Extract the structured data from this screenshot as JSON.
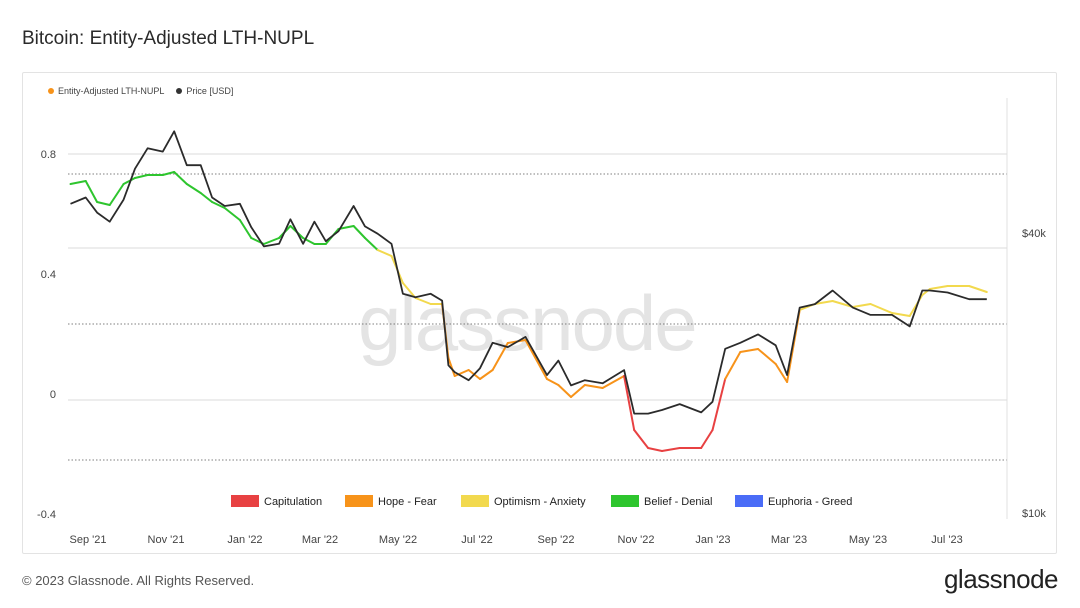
{
  "header": {
    "title": "Bitcoin: Entity-Adjusted LTH-NUPL"
  },
  "footer": {
    "copyright": "© 2023 Glassnode. All Rights Reserved.",
    "brand": "glassnode"
  },
  "watermark": "glassnode",
  "legend_top": [
    {
      "label": "Entity-Adjusted LTH-NUPL",
      "color": "#f7931a"
    },
    {
      "label": "Price [USD]",
      "color": "#333333"
    }
  ],
  "legend_bottom": [
    {
      "label": "Capitulation",
      "color": "#e84142"
    },
    {
      "label": "Hope - Fear",
      "color": "#f7931a"
    },
    {
      "label": "Optimism - Anxiety",
      "color": "#f2d94e"
    },
    {
      "label": "Belief - Denial",
      "color": "#2ec52e"
    },
    {
      "label": "Euphoria - Greed",
      "color": "#4a6cf7"
    }
  ],
  "chart_data": {
    "type": "line",
    "title": "Bitcoin: Entity-Adjusted LTH-NUPL",
    "x_ticks": [
      "Sep '21",
      "Nov '21",
      "Jan '22",
      "Mar '22",
      "May '22",
      "Jul '22",
      "Sep '22",
      "Nov '22",
      "Jan '23",
      "Mar '23",
      "May '23",
      "Jul '23"
    ],
    "y_left_ticks": [
      "0.8",
      "0.4",
      "0",
      "-0.4"
    ],
    "y_left_range": [
      -0.4,
      0.8
    ],
    "y_right_ticks": [
      "$40k",
      "$10k"
    ],
    "y_right_scale": "log",
    "y_right_range": [
      10000,
      70000
    ],
    "grid": true,
    "series": [
      {
        "name": "Entity-Adjusted LTH-NUPL",
        "x": [
          "2021-08-20",
          "2021-09-01",
          "2021-09-10",
          "2021-09-20",
          "2021-10-01",
          "2021-10-10",
          "2021-10-20",
          "2021-11-01",
          "2021-11-10",
          "2021-11-20",
          "2021-12-01",
          "2021-12-10",
          "2021-12-20",
          "2022-01-01",
          "2022-01-10",
          "2022-01-20",
          "2022-02-01",
          "2022-02-10",
          "2022-02-20",
          "2022-03-01",
          "2022-03-10",
          "2022-03-20",
          "2022-04-01",
          "2022-04-10",
          "2022-04-20",
          "2022-05-01",
          "2022-05-10",
          "2022-05-20",
          "2022-06-01",
          "2022-06-10",
          "2022-06-15",
          "2022-06-20",
          "2022-07-01",
          "2022-07-10",
          "2022-07-20",
          "2022-08-01",
          "2022-08-15",
          "2022-09-01",
          "2022-09-10",
          "2022-09-20",
          "2022-10-01",
          "2022-10-15",
          "2022-11-01",
          "2022-11-09",
          "2022-11-20",
          "2022-12-01",
          "2022-12-15",
          "2023-01-01",
          "2023-01-10",
          "2023-01-20",
          "2023-02-01",
          "2023-02-15",
          "2023-03-01",
          "2023-03-10",
          "2023-03-20",
          "2023-04-01",
          "2023-04-15",
          "2023-05-01",
          "2023-05-15",
          "2023-06-01",
          "2023-06-15",
          "2023-06-25",
          "2023-07-01",
          "2023-07-15",
          "2023-08-01",
          "2023-08-15"
        ],
        "values": [
          0.7,
          0.71,
          0.64,
          0.63,
          0.7,
          0.72,
          0.73,
          0.73,
          0.74,
          0.7,
          0.67,
          0.64,
          0.62,
          0.58,
          0.52,
          0.5,
          0.52,
          0.56,
          0.52,
          0.5,
          0.5,
          0.55,
          0.56,
          0.52,
          0.48,
          0.46,
          0.37,
          0.32,
          0.3,
          0.3,
          0.12,
          0.06,
          0.08,
          0.05,
          0.08,
          0.17,
          0.18,
          0.05,
          0.03,
          -0.01,
          0.03,
          0.02,
          0.06,
          -0.12,
          -0.18,
          -0.19,
          -0.18,
          -0.18,
          -0.12,
          0.05,
          0.14,
          0.15,
          0.1,
          0.04,
          0.28,
          0.3,
          0.31,
          0.29,
          0.3,
          0.27,
          0.26,
          0.33,
          0.35,
          0.36,
          0.36,
          0.34
        ]
      },
      {
        "name": "Price [USD]",
        "x": [
          "2021-08-20",
          "2021-09-01",
          "2021-09-10",
          "2021-09-20",
          "2021-10-01",
          "2021-10-10",
          "2021-10-20",
          "2021-11-01",
          "2021-11-10",
          "2021-11-20",
          "2021-12-01",
          "2021-12-10",
          "2021-12-20",
          "2022-01-01",
          "2022-01-10",
          "2022-01-20",
          "2022-02-01",
          "2022-02-10",
          "2022-02-20",
          "2022-03-01",
          "2022-03-10",
          "2022-03-20",
          "2022-04-01",
          "2022-04-10",
          "2022-04-20",
          "2022-05-01",
          "2022-05-10",
          "2022-05-20",
          "2022-06-01",
          "2022-06-10",
          "2022-06-15",
          "2022-06-20",
          "2022-07-01",
          "2022-07-10",
          "2022-07-20",
          "2022-08-01",
          "2022-08-15",
          "2022-09-01",
          "2022-09-10",
          "2022-09-20",
          "2022-10-01",
          "2022-10-15",
          "2022-11-01",
          "2022-11-09",
          "2022-11-20",
          "2022-12-01",
          "2022-12-15",
          "2023-01-01",
          "2023-01-10",
          "2023-01-20",
          "2023-02-01",
          "2023-02-15",
          "2023-03-01",
          "2023-03-10",
          "2023-03-20",
          "2023-04-01",
          "2023-04-15",
          "2023-05-01",
          "2023-05-15",
          "2023-06-01",
          "2023-06-15",
          "2023-06-25",
          "2023-07-01",
          "2023-07-15",
          "2023-08-01",
          "2023-08-15"
        ],
        "values": [
          47000,
          48500,
          45000,
          43000,
          48000,
          56000,
          62000,
          61000,
          67500,
          57000,
          57000,
          48500,
          46500,
          47000,
          41800,
          38000,
          38500,
          43500,
          38500,
          43000,
          39000,
          41000,
          46500,
          42000,
          40500,
          38500,
          30000,
          29500,
          30000,
          29000,
          21000,
          20300,
          19500,
          20700,
          23500,
          23000,
          24200,
          20000,
          21500,
          19000,
          19500,
          19200,
          20500,
          16500,
          16500,
          16800,
          17300,
          16600,
          17500,
          22800,
          23500,
          24500,
          23200,
          20000,
          28000,
          28500,
          30500,
          28000,
          27000,
          27000,
          25500,
          30500,
          30500,
          30200,
          29200,
          29200
        ]
      }
    ]
  }
}
